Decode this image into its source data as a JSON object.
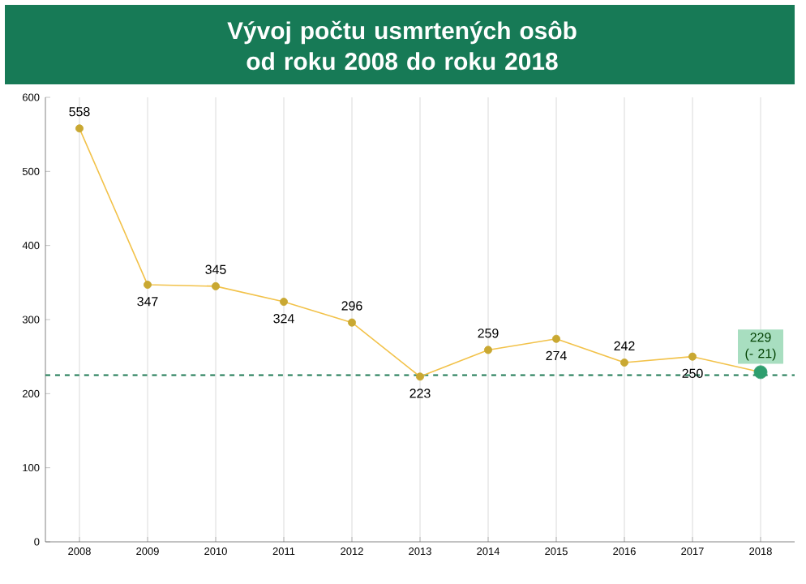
{
  "chart_data": {
    "type": "line",
    "title": "Vývoj počtu usmrtených osôb\nod roku 2008 do roku 2018",
    "categories": [
      "2008",
      "2009",
      "2010",
      "2011",
      "2012",
      "2013",
      "2014",
      "2015",
      "2016",
      "2017",
      "2018"
    ],
    "values": [
      558,
      347,
      345,
      324,
      296,
      223,
      259,
      274,
      242,
      250,
      229
    ],
    "value_labels": [
      "558",
      "347",
      "345",
      "324",
      "296",
      "223",
      "259",
      "274",
      "242",
      "250",
      "229 (- 21)"
    ],
    "color": "#f2c24a",
    "colors": [
      "#c9a832",
      "#c9a832",
      "#c9a832",
      "#c9a832",
      "#c9a832",
      "#c9a832",
      "#c9a832",
      "#c9a832",
      "#c9a832",
      "#c9a832",
      "#2e9e6e"
    ],
    "marker": "circle",
    "ylim": [
      0,
      600
    ],
    "yticks": [
      0,
      100,
      200,
      300,
      400,
      500,
      600
    ],
    "grid": "x",
    "ref_lines": [
      {
        "axis": "y",
        "value": 225,
        "color": "#1e7a55",
        "line_style": "dashed"
      }
    ]
  }
}
